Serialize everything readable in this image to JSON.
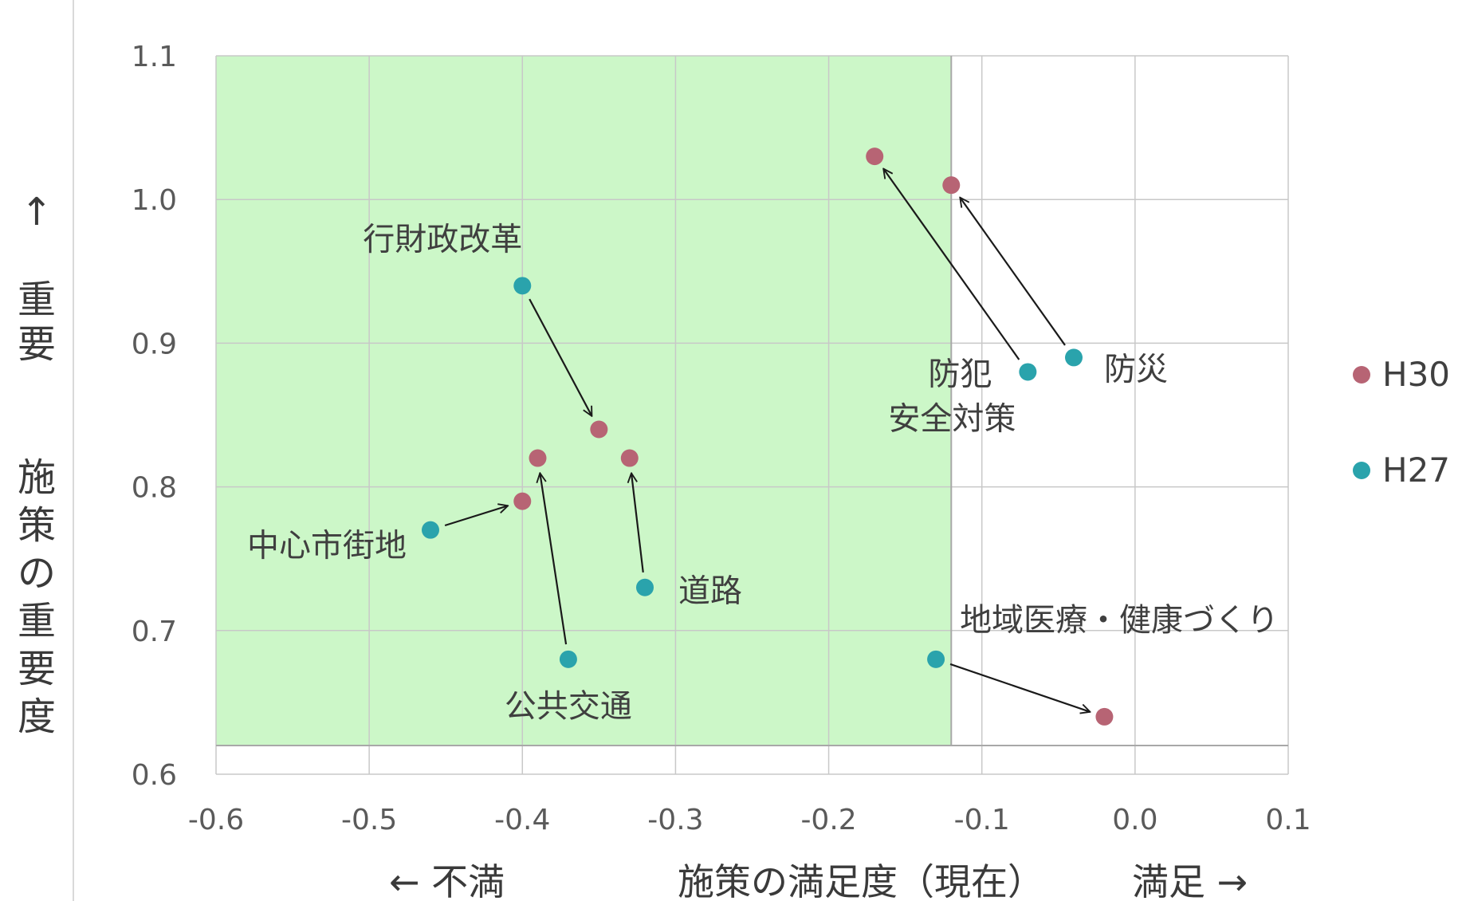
{
  "chart_data": {
    "type": "scatter",
    "xlim": [
      -0.6,
      0.1
    ],
    "ylim": [
      0.6,
      1.1
    ],
    "x_ticks": [
      "-0.6",
      "-0.5",
      "-0.4",
      "-0.3",
      "-0.2",
      "-0.1",
      "0.0",
      "0.1"
    ],
    "y_ticks": [
      "0.6",
      "0.7",
      "0.8",
      "0.9",
      "1.0",
      "1.1"
    ],
    "grid": true,
    "legend_position": "right",
    "x_axis_labels": {
      "left": "← 不満",
      "center": "施策の満足度（現在）",
      "right": "満足 →"
    },
    "y_axis_label": {
      "arrow": "↑",
      "top": "重要",
      "bottom": "施策の重要度"
    },
    "highlight_region": {
      "x": [
        -0.6,
        -0.12
      ],
      "y": [
        0.62,
        1.1
      ],
      "color": "#ccf7c8"
    },
    "series": [
      {
        "name": "H30",
        "color": "#b76474"
      },
      {
        "name": "H27",
        "color": "#2aa3ac"
      }
    ],
    "items": [
      {
        "label": "行財政改革",
        "H27": [
          -0.4,
          0.94
        ],
        "H30": [
          -0.35,
          0.84
        ]
      },
      {
        "label": "中心市街地",
        "H27": [
          -0.46,
          0.77
        ],
        "H30": [
          -0.4,
          0.79
        ]
      },
      {
        "label": "公共交通",
        "H27": [
          -0.37,
          0.68
        ],
        "H30": [
          -0.39,
          0.82
        ]
      },
      {
        "label": "道路",
        "H27": [
          -0.32,
          0.73
        ],
        "H30": [
          -0.33,
          0.82
        ]
      },
      {
        "label": "防犯\n安全対策",
        "H27": [
          -0.07,
          0.88
        ],
        "H30": [
          -0.17,
          1.03
        ]
      },
      {
        "label": "防災",
        "H27": [
          -0.04,
          0.89
        ],
        "H30": [
          -0.12,
          1.01
        ]
      },
      {
        "label": "地域医療・健康づくり",
        "H27": [
          -0.13,
          0.68
        ],
        "H30": [
          -0.02,
          0.64
        ]
      }
    ]
  }
}
